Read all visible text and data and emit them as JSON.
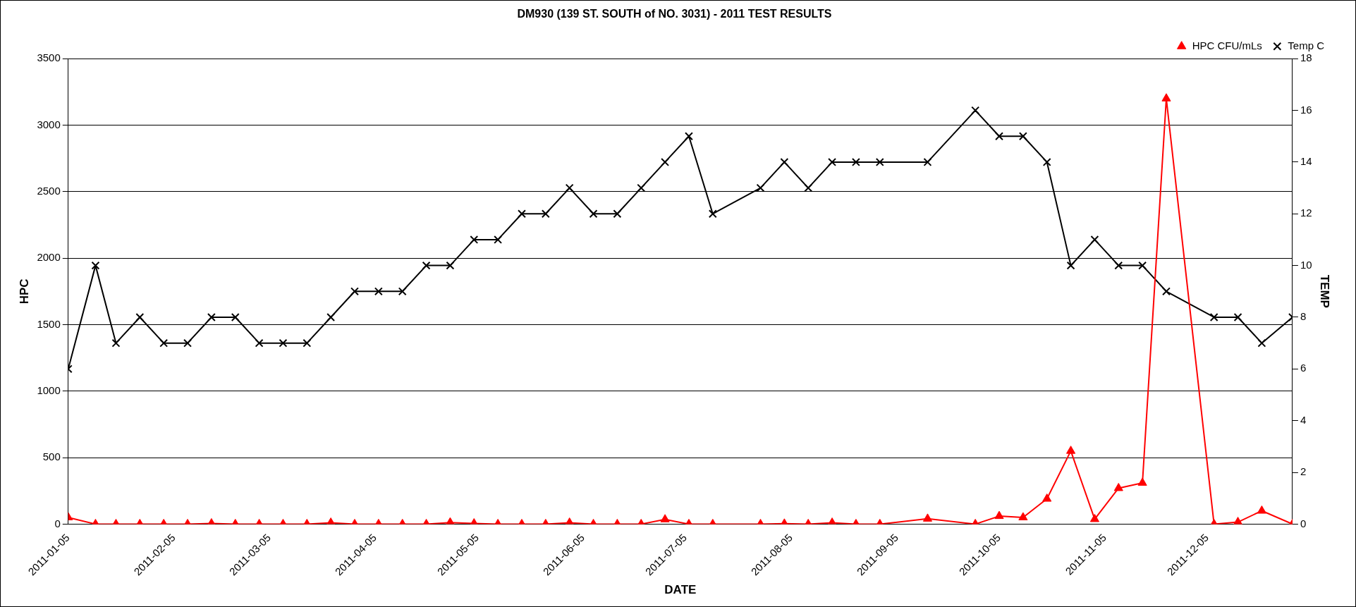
{
  "chart_data": {
    "type": "line",
    "title": "DM930 (139 ST. SOUTH of NO. 3031) - 2011 TEST RESULTS",
    "xlabel": "DATE",
    "ylabel": "HPC",
    "y2label": "TEMP",
    "x": [
      "2011-01-05",
      "2011-01-13",
      "2011-01-19",
      "2011-01-26",
      "2011-02-02",
      "2011-02-09",
      "2011-02-16",
      "2011-02-23",
      "2011-03-02",
      "2011-03-09",
      "2011-03-16",
      "2011-03-23",
      "2011-03-30",
      "2011-04-06",
      "2011-04-13",
      "2011-04-20",
      "2011-04-27",
      "2011-05-04",
      "2011-05-11",
      "2011-05-18",
      "2011-05-25",
      "2011-06-01",
      "2011-06-08",
      "2011-06-15",
      "2011-06-22",
      "2011-06-29",
      "2011-07-06",
      "2011-07-13",
      "2011-07-27",
      "2011-08-03",
      "2011-08-10",
      "2011-08-17",
      "2011-08-24",
      "2011-08-31",
      "2011-09-14",
      "2011-09-28",
      "2011-10-05",
      "2011-10-12",
      "2011-10-19",
      "2011-10-26",
      "2011-11-02",
      "2011-11-09",
      "2011-11-16",
      "2011-11-23",
      "2011-12-07",
      "2011-12-14",
      "2011-12-21",
      "2011-12-30"
    ],
    "series": [
      {
        "name": "HPC CFU/mLs",
        "color": "#ff0000",
        "marker": "triangle",
        "values": [
          50,
          0,
          0,
          0,
          0,
          0,
          5,
          0,
          0,
          0,
          0,
          10,
          0,
          0,
          0,
          0,
          12,
          5,
          0,
          0,
          0,
          10,
          0,
          0,
          0,
          35,
          0,
          0,
          0,
          3,
          0,
          10,
          0,
          0,
          40,
          0,
          60,
          50,
          190,
          550,
          37,
          270,
          310,
          3200,
          0,
          15,
          100,
          0
        ]
      },
      {
        "name": "Temp C",
        "color": "#000000",
        "marker": "cross",
        "axis": "y2",
        "values": [
          6,
          10,
          7,
          8,
          7,
          7,
          8,
          8,
          7,
          7,
          7,
          8,
          9,
          9,
          9,
          10,
          10,
          11,
          11,
          12,
          12,
          13,
          12,
          12,
          13,
          14,
          15,
          12,
          13,
          14,
          13,
          14,
          14,
          14,
          14,
          16,
          15,
          15,
          14,
          10,
          11,
          10,
          10,
          9,
          8,
          8,
          7,
          8
        ]
      }
    ],
    "xlim": [
      "2011-01-05",
      "2011-12-30"
    ],
    "xticks": [
      "2011-01-05",
      "2011-02-05",
      "2011-03-05",
      "2011-04-05",
      "2011-05-05",
      "2011-06-05",
      "2011-07-05",
      "2011-08-05",
      "2011-09-05",
      "2011-10-05",
      "2011-11-05",
      "2011-12-05"
    ],
    "ylim": [
      0,
      3500
    ],
    "yticks": [
      0,
      500,
      1000,
      1500,
      2000,
      2500,
      3000,
      3500
    ],
    "y2lim": [
      0,
      18
    ],
    "y2ticks": [
      0,
      2,
      4,
      6,
      8,
      10,
      12,
      14,
      16,
      18
    ],
    "grid": "y",
    "legend": "top right",
    "line_style": "solid"
  }
}
